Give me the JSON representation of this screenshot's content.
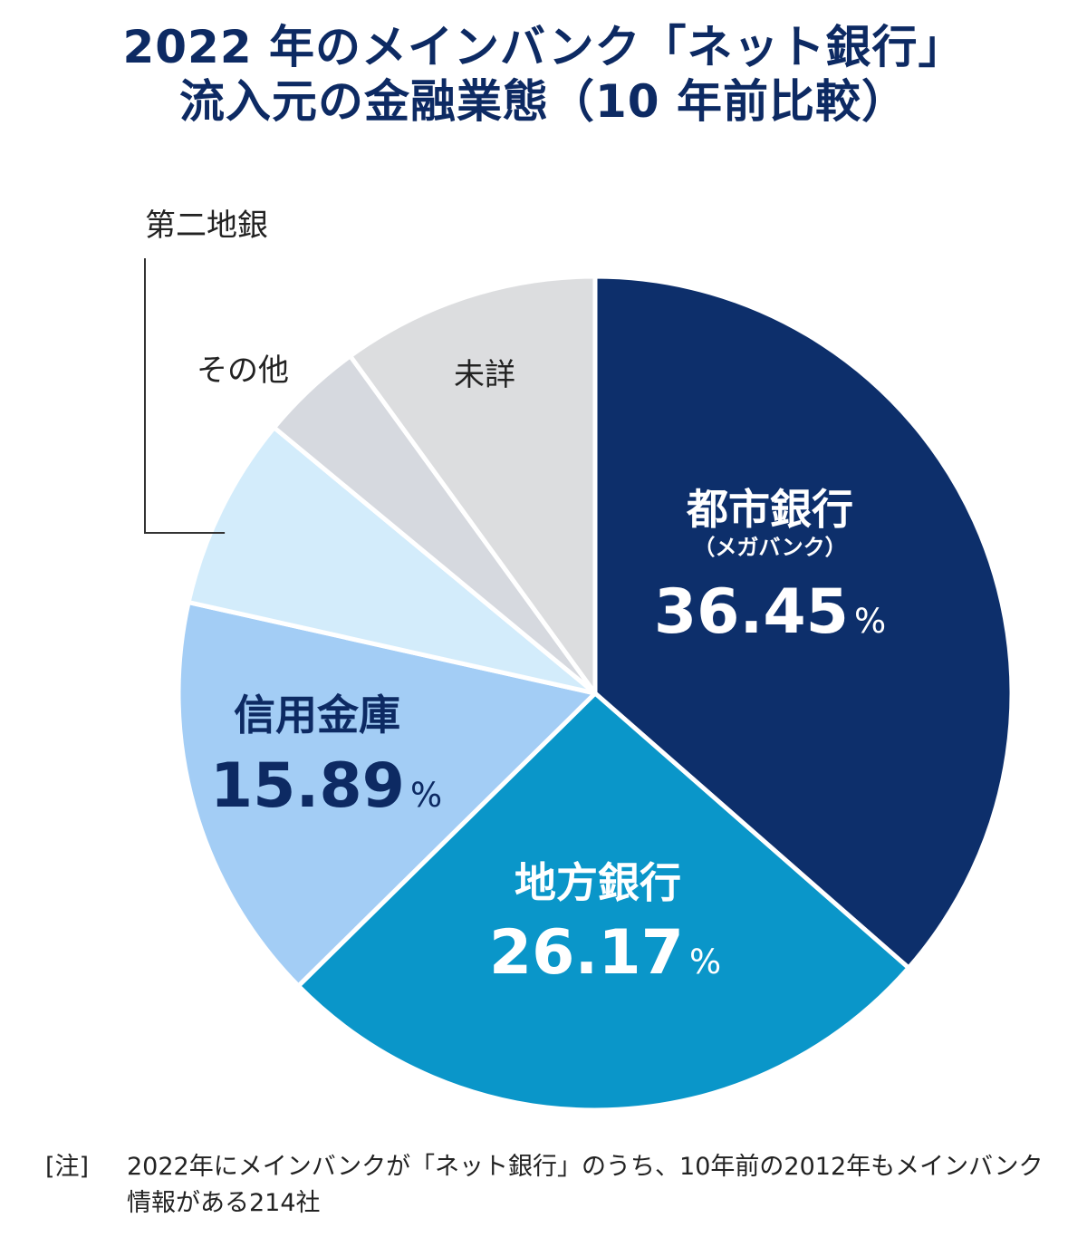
{
  "title": {
    "line1": "2022 年のメインバンク「ネット銀行」",
    "line2": "流入元の金融業態（10 年前比較）"
  },
  "chart_data": {
    "type": "pie",
    "slices": [
      {
        "label": "都市銀行",
        "sublabel": "（メガバンク）",
        "value": 36.45,
        "value_label": "36.45",
        "color": "#0d2f6b",
        "text_color": "#ffffff"
      },
      {
        "label": "地方銀行",
        "value": 26.17,
        "value_label": "26.17",
        "color": "#0a96c9",
        "text_color": "#ffffff"
      },
      {
        "label": "信用金庫",
        "value": 15.89,
        "value_label": "15.89",
        "color": "#a3cdf5",
        "text_color": "#0d2a63"
      },
      {
        "label": "第二地銀",
        "value": 7.5,
        "color": "#d3ecfb"
      },
      {
        "label": "その他",
        "value": 4.0,
        "color": "#d6d9df"
      },
      {
        "label": "未詳",
        "value": 10.0,
        "color": "#dcdddf"
      }
    ],
    "percent_sign": "%"
  },
  "note": {
    "tag": "[注]",
    "text": "2022年にメインバンクが「ネット銀行」のうち、10年前の2012年もメインバンク情報がある214社"
  }
}
